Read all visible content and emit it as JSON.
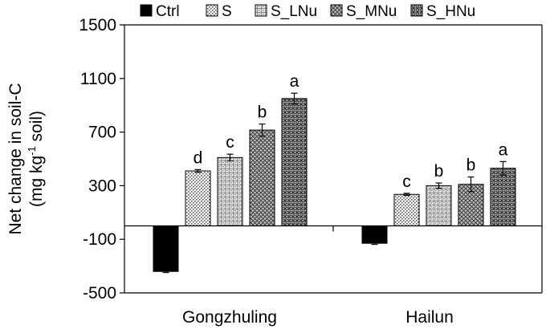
{
  "chart_data": {
    "type": "bar",
    "categories": [
      "Gongzhuling",
      "Hailun"
    ],
    "ylabel_line1": "Net change in soil-C",
    "ylabel_line2_pre": "(mg kg",
    "ylabel_line2_sup": "-1",
    "ylabel_line2_post": " soil)",
    "ylim": [
      -500,
      1500
    ],
    "yticks": [
      1500,
      1100,
      700,
      300,
      -100,
      -500
    ],
    "series": [
      {
        "name": "Ctrl",
        "pattern": "solid",
        "values": [
          -340,
          -130
        ],
        "errors": [
          8,
          8
        ],
        "sig": [
          "",
          ""
        ]
      },
      {
        "name": "S",
        "pattern": "dots",
        "values": [
          410,
          235
        ],
        "errors": [
          10,
          8
        ],
        "sig": [
          "d",
          "c"
        ]
      },
      {
        "name": "S_LNu",
        "pattern": "grid",
        "values": [
          510,
          300
        ],
        "errors": [
          25,
          20
        ],
        "sig": [
          "c",
          "b"
        ]
      },
      {
        "name": "S_MNu",
        "pattern": "cross",
        "values": [
          715,
          310
        ],
        "errors": [
          45,
          55
        ],
        "sig": [
          "b",
          "b"
        ]
      },
      {
        "name": "S_HNu",
        "pattern": "dense",
        "values": [
          950,
          430
        ],
        "errors": [
          40,
          50
        ],
        "sig": [
          "a",
          "a"
        ]
      }
    ],
    "legend": "top"
  }
}
